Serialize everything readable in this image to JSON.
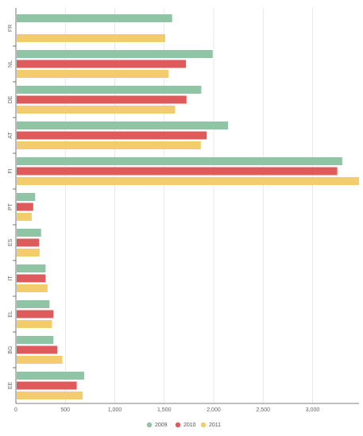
{
  "chart_data": {
    "type": "bar",
    "orientation": "horizontal",
    "categories": [
      "FR",
      "NL",
      "DE",
      "AT",
      "FI",
      "PT",
      "ES",
      "IT",
      "EL",
      "BG",
      "EE"
    ],
    "series": [
      {
        "name": "2009",
        "color": "#8fc5a5",
        "values": [
          1580,
          1990,
          1875,
          2145,
          3300,
          195,
          255,
          300,
          340,
          380,
          690
        ]
      },
      {
        "name": "2010",
        "color": "#df5a5a",
        "values": [
          null,
          1720,
          1725,
          1930,
          3250,
          175,
          235,
          300,
          380,
          420,
          615
        ]
      },
      {
        "name": "2011",
        "color": "#f2cc6d",
        "values": [
          1510,
          1545,
          1610,
          1870,
          3470,
          160,
          240,
          320,
          365,
          470,
          675
        ]
      }
    ],
    "xlim": [
      0,
      3470
    ],
    "xticks": [
      0,
      500,
      1000,
      1500,
      2000,
      2500,
      3000
    ],
    "xtick_labels": [
      "0",
      "500",
      "1,000",
      "1,500",
      "2,000",
      "2,500",
      "3,000"
    ],
    "grid": true,
    "legend_position": "bottom-center",
    "title": "",
    "xlabel": "",
    "ylabel": ""
  }
}
